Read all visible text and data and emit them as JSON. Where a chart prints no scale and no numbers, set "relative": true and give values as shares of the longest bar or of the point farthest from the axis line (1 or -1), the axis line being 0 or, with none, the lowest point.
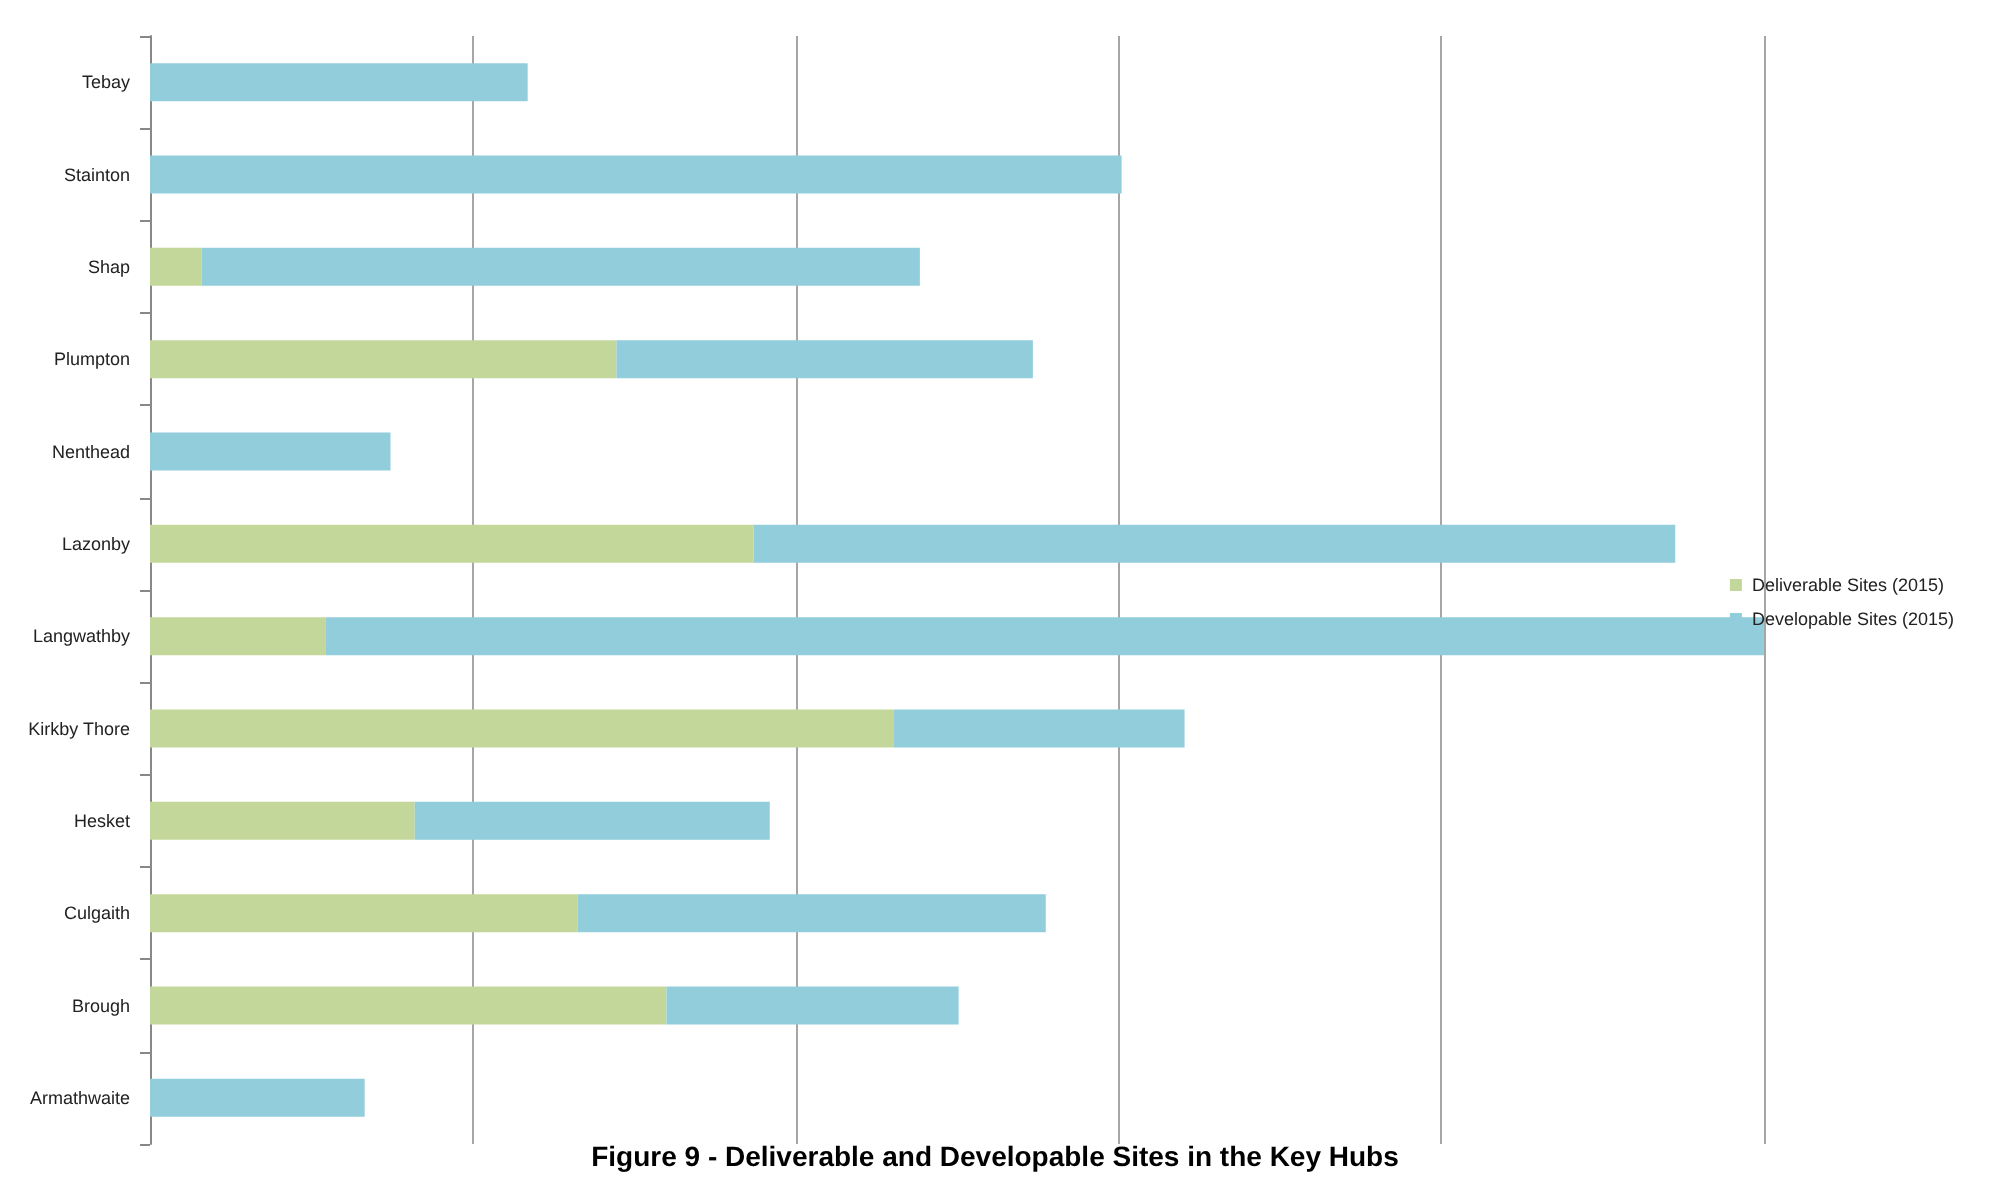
{
  "chart_data": {
    "type": "bar",
    "orientation": "horizontal",
    "stacked": true,
    "relative": true,
    "title": "Figure 9 - Deliverable and Developable Sites in the Key Hubs",
    "categories": [
      "Tebay",
      "Stainton",
      "Shap",
      "Plumpton",
      "Nenthead",
      "Lazonby",
      "Langwathby",
      "Kirkby Thore",
      "Hesket",
      "Culgaith",
      "Brough",
      "Armathwaite"
    ],
    "series": [
      {
        "name": "Deliverable Sites (2015)",
        "color": "#c4d79b",
        "values": [
          0,
          0,
          0.032,
          0.289,
          0,
          0.374,
          0.109,
          0.461,
          0.164,
          0.265,
          0.32,
          0
        ]
      },
      {
        "name": "Developable Sites (2015)",
        "color": "#92cddc",
        "values": [
          0.234,
          0.602,
          0.445,
          0.258,
          0.149,
          0.571,
          0.891,
          0.18,
          0.22,
          0.29,
          0.181,
          0.133
        ]
      }
    ],
    "grid": "x",
    "legend": "right"
  }
}
